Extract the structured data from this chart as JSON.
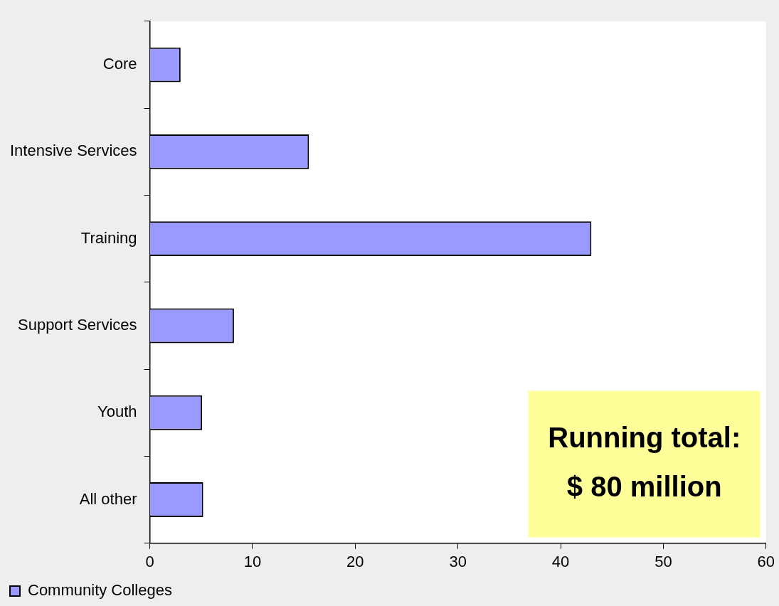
{
  "chart_data": {
    "type": "bar",
    "orientation": "horizontal",
    "categories": [
      "Core",
      "Intensive Services",
      "Training",
      "Support Services",
      "Youth",
      "All other"
    ],
    "series": [
      {
        "name": "Community Colleges",
        "color": "#9999ff",
        "values": [
          3.0,
          15.5,
          43.0,
          8.2,
          5.1,
          5.2
        ]
      }
    ],
    "xlim": [
      0,
      60
    ],
    "xticks": [
      0,
      10,
      20,
      30,
      40,
      50,
      60
    ],
    "grid": false,
    "legend": "bottom left",
    "annotations": [
      "Running total:",
      "$ 80 million"
    ]
  }
}
